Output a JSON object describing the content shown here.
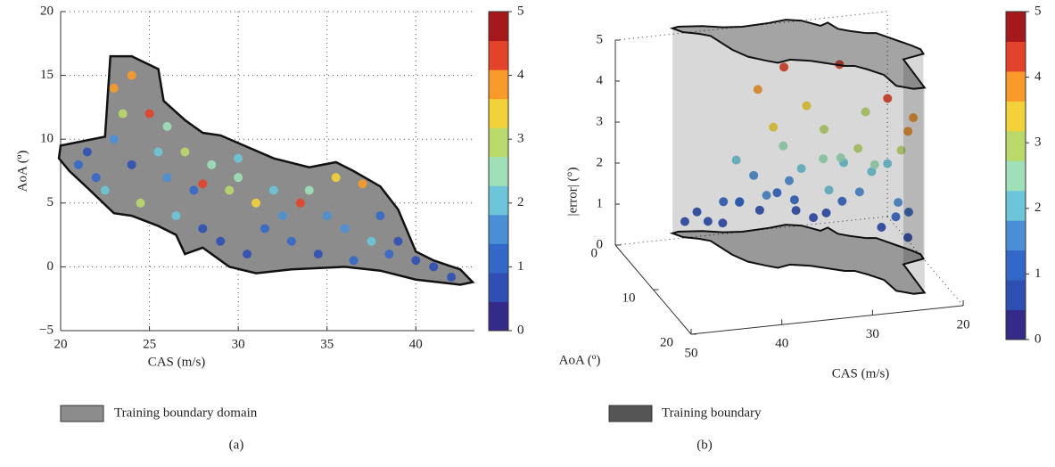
{
  "chart_data": [
    {
      "type": "scatter",
      "caption": "(a)",
      "xlabel": "CAS (m/s)",
      "ylabel": "AoA (º)",
      "xlim": [
        20,
        43.3
      ],
      "xticks": [
        20,
        25,
        30,
        35,
        40
      ],
      "ylim": [
        -5,
        20
      ],
      "yticks": [
        {
          "value": -5,
          "label": "−5"
        },
        0,
        5,
        10,
        15,
        20
      ],
      "grid": true,
      "clim": [
        0,
        5
      ],
      "cticks": [
        0,
        1,
        2,
        3,
        4,
        5
      ],
      "colormap": [
        "#352a87",
        "#2f4fb4",
        "#3468c8",
        "#4a8fd6",
        "#6cc5d8",
        "#9fe0b8",
        "#b9d96a",
        "#f2d13a",
        "#f99a2a",
        "#e2432a",
        "#a5181c"
      ],
      "boundary": {
        "name": "Training boundary domain",
        "color": "#8c8c8c",
        "x": [
          20,
          22.5,
          22.8,
          24,
          25.5,
          25.8,
          27,
          28,
          29,
          30,
          32,
          34,
          35.5,
          36.5,
          38,
          39,
          40,
          41,
          42.5,
          43.2,
          42.5,
          40,
          38,
          36,
          33,
          31,
          29.5,
          28,
          27,
          26.5,
          25.5,
          24,
          23,
          21.5,
          20.5,
          19.9
        ],
        "y": [
          9.5,
          10.2,
          16.5,
          16.5,
          15.5,
          13,
          11.5,
          10.5,
          10.3,
          9.7,
          8.5,
          7.8,
          8.2,
          7.5,
          6.3,
          4.5,
          1.2,
          0.5,
          -0.2,
          -1.2,
          -1.4,
          -1,
          -0.3,
          0,
          -0.2,
          -0.5,
          0,
          1.5,
          1,
          2.5,
          3.2,
          4,
          4.2,
          6.2,
          7.5,
          8.5
        ]
      },
      "points": {
        "x": [
          21,
          21.5,
          22,
          22.5,
          23,
          23.5,
          23,
          24,
          24.5,
          25,
          25.5,
          26,
          26.5,
          27,
          27.5,
          28,
          28.5,
          29,
          29.5,
          30,
          30.5,
          31,
          31.5,
          32,
          32.5,
          33,
          33.5,
          34,
          34.5,
          35,
          35.5,
          36,
          36.5,
          37,
          37.5,
          38,
          38.5,
          39,
          40,
          41,
          42,
          24,
          26,
          28,
          30
        ],
        "y": [
          8,
          9,
          7,
          6,
          14,
          12,
          10,
          8,
          5,
          12,
          9,
          7,
          4,
          9,
          6,
          3,
          8,
          2,
          6,
          7,
          1,
          5,
          3,
          6,
          4,
          2,
          5,
          6,
          1,
          4,
          7,
          3,
          0.5,
          6.5,
          2,
          4,
          1,
          2,
          0.5,
          0,
          -0.8,
          15,
          11,
          6.5,
          8.5
        ],
        "error": [
          1,
          0.5,
          0.8,
          2,
          4,
          3,
          1.5,
          0.7,
          3.2,
          4.3,
          2.2,
          1.5,
          1.9,
          2.8,
          1.2,
          0.6,
          2.5,
          0.4,
          3,
          2.4,
          0.5,
          3.5,
          1,
          2.1,
          1.6,
          1.1,
          4.5,
          2.7,
          0.6,
          1.3,
          3.3,
          1.7,
          0.8,
          4.2,
          2,
          1.2,
          0.9,
          0.5,
          0.4,
          0.6,
          0.3,
          3.8,
          2.6,
          4.6,
          1.8
        ]
      }
    },
    {
      "type": "scatter3d",
      "caption": "(b)",
      "xlabel": "CAS (m/s)",
      "ylabel": "AoA (º)",
      "zlabel": "|error| (°)",
      "xticks": [
        20,
        30,
        40,
        50
      ],
      "yticks": [
        0,
        10,
        20
      ],
      "zlim": [
        0,
        5
      ],
      "zticks": [
        0,
        1,
        2,
        3,
        4,
        5
      ],
      "clim": [
        0,
        5
      ],
      "cticks": [
        0,
        1,
        2,
        3,
        4,
        5
      ],
      "boundary": {
        "name": "Training boundary",
        "color": "#555555"
      }
    }
  ]
}
